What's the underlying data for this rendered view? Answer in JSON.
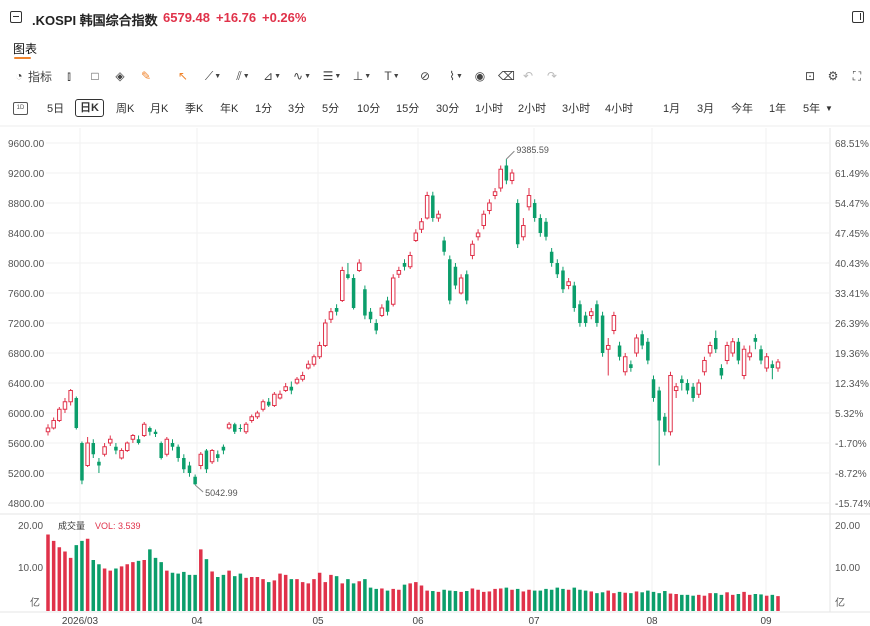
{
  "header": {
    "title": ".KOSPI 韩国综合指数",
    "price": "6579.48",
    "change": "+16.76",
    "change_pct": "+0.26%",
    "up_color": "#e0324a"
  },
  "tab": {
    "label": "图表"
  },
  "toolbar": {
    "indicator_label": "指标",
    "icons": [
      "indicator-icon",
      "candle-style-icon",
      "rectangle-icon",
      "layers-icon",
      "brush-icon",
      "cursor-icon",
      "trend-line-icon",
      "parallel-line-icon",
      "triangle-icon",
      "wave-icon",
      "fib-icon",
      "horizontal-line-icon",
      "text-icon",
      "measure-icon",
      "path-icon",
      "eye-icon",
      "trash-icon",
      "undo-icon",
      "redo-icon",
      "camera-icon",
      "settings-icon",
      "fullscreen-icon"
    ]
  },
  "periods": [
    "5日",
    "日K",
    "周K",
    "月K",
    "季K",
    "年K",
    "1分",
    "3分",
    "5分",
    "10分",
    "15分",
    "30分",
    "1小时",
    "2小时",
    "3小时",
    "4小时",
    "1月",
    "3月",
    "今年",
    "1年",
    "5年"
  ],
  "selected_period": "日K",
  "chart_data": {
    "type": "candlestick",
    "y_left_ticks": [
      "9600.00",
      "9200.00",
      "8800.00",
      "8400.00",
      "8000.00",
      "7600.00",
      "7200.00",
      "6800.00",
      "6400.00",
      "6000.00",
      "5600.00",
      "5200.00",
      "4800.00"
    ],
    "y_right_ticks": [
      "68.51%",
      "61.49%",
      "54.47%",
      "47.45%",
      "40.43%",
      "33.41%",
      "26.39%",
      "19.36%",
      "12.34%",
      "5.32%",
      "-1.70%",
      "-8.72%",
      "-15.74%"
    ],
    "ylim": [
      4800,
      9600
    ],
    "high_label": "9385.59",
    "low_label": "5042.99",
    "x_labels": [
      "2026/03",
      "04",
      "05",
      "06",
      "07",
      "08",
      "09"
    ],
    "volume": {
      "label": "成交量",
      "vol_text": "VOL: 3.539",
      "y_ticks_left": [
        "20.00",
        "10.00",
        "亿"
      ],
      "y_ticks_right": [
        "20.00",
        "10.00",
        "亿"
      ],
      "ylim": [
        0,
        20
      ]
    },
    "up_color": "#e0324a",
    "down_color": "#0b9e6b",
    "candles": [
      [
        5750,
        5800,
        5700,
        5850,
        1
      ],
      [
        5800,
        5900,
        5780,
        5940,
        1
      ],
      [
        5900,
        6050,
        5880,
        6080,
        1
      ],
      [
        6050,
        6150,
        6000,
        6200,
        1
      ],
      [
        6150,
        6300,
        6100,
        6320,
        1
      ],
      [
        6200,
        5800,
        5780,
        6220,
        0
      ],
      [
        5600,
        5100,
        5050,
        5620,
        0
      ],
      [
        5300,
        5600,
        5280,
        5680,
        1
      ],
      [
        5600,
        5450,
        5400,
        5650,
        0
      ],
      [
        5350,
        5300,
        5200,
        5400,
        0
      ],
      [
        5450,
        5550,
        5420,
        5600,
        1
      ],
      [
        5600,
        5650,
        5560,
        5700,
        1
      ],
      [
        5550,
        5500,
        5450,
        5600,
        0
      ],
      [
        5400,
        5500,
        5380,
        5530,
        1
      ],
      [
        5500,
        5600,
        5480,
        5620,
        1
      ],
      [
        5650,
        5700,
        5600,
        5720,
        1
      ],
      [
        5650,
        5600,
        5580,
        5700,
        0
      ],
      [
        5700,
        5850,
        5680,
        5880,
        1
      ],
      [
        5800,
        5750,
        5700,
        5820,
        0
      ],
      [
        5750,
        5720,
        5680,
        5780,
        0
      ],
      [
        5600,
        5400,
        5380,
        5620,
        0
      ],
      [
        5450,
        5650,
        5420,
        5680,
        1
      ],
      [
        5600,
        5550,
        5500,
        5650,
        0
      ],
      [
        5550,
        5400,
        5350,
        5580,
        0
      ],
      [
        5400,
        5250,
        5200,
        5450,
        0
      ],
      [
        5300,
        5200,
        5150,
        5350,
        0
      ],
      [
        5150,
        5050,
        5040,
        5180,
        0
      ],
      [
        5300,
        5450,
        5250,
        5480,
        1
      ],
      [
        5500,
        5250,
        5200,
        5520,
        0
      ],
      [
        5350,
        5500,
        5320,
        5520,
        1
      ],
      [
        5450,
        5400,
        5350,
        5500,
        0
      ],
      [
        5550,
        5500,
        5450,
        5580,
        0
      ],
      [
        5800,
        5850,
        5780,
        5880,
        1
      ],
      [
        5850,
        5750,
        5720,
        5870,
        0
      ],
      [
        5800,
        5800,
        5750,
        5850,
        0
      ],
      [
        5750,
        5850,
        5720,
        5880,
        1
      ],
      [
        5900,
        5950,
        5870,
        5980,
        1
      ],
      [
        5950,
        6000,
        5920,
        6030,
        1
      ],
      [
        6050,
        6150,
        6020,
        6180,
        1
      ],
      [
        6150,
        6100,
        6080,
        6200,
        0
      ],
      [
        6100,
        6250,
        6080,
        6280,
        1
      ],
      [
        6200,
        6250,
        6180,
        6300,
        1
      ],
      [
        6300,
        6350,
        6280,
        6400,
        1
      ],
      [
        6350,
        6300,
        6250,
        6420,
        0
      ],
      [
        6400,
        6450,
        6380,
        6480,
        1
      ],
      [
        6450,
        6500,
        6420,
        6550,
        1
      ],
      [
        6600,
        6650,
        6580,
        6700,
        1
      ],
      [
        6650,
        6750,
        6620,
        6780,
        1
      ],
      [
        6750,
        6900,
        6720,
        6950,
        1
      ],
      [
        6900,
        7200,
        6880,
        7250,
        1
      ],
      [
        7250,
        7350,
        7200,
        7400,
        1
      ],
      [
        7400,
        7350,
        7300,
        7450,
        0
      ],
      [
        7500,
        7900,
        7480,
        7950,
        1
      ],
      [
        7850,
        7800,
        7780,
        8000,
        0
      ],
      [
        7800,
        7400,
        7380,
        7850,
        0
      ],
      [
        7900,
        8000,
        7880,
        8050,
        1
      ],
      [
        7650,
        7300,
        7250,
        7700,
        0
      ],
      [
        7350,
        7250,
        7200,
        7400,
        0
      ],
      [
        7200,
        7100,
        7050,
        7250,
        0
      ],
      [
        7300,
        7400,
        7280,
        7450,
        1
      ],
      [
        7500,
        7350,
        7300,
        7550,
        0
      ],
      [
        7450,
        7800,
        7420,
        7850,
        1
      ],
      [
        7850,
        7900,
        7800,
        7950,
        1
      ],
      [
        8000,
        7950,
        7900,
        8050,
        0
      ],
      [
        7950,
        8100,
        7920,
        8150,
        1
      ],
      [
        8300,
        8400,
        8280,
        8450,
        1
      ],
      [
        8450,
        8550,
        8400,
        8600,
        1
      ],
      [
        8600,
        8900,
        8580,
        8950,
        1
      ],
      [
        8900,
        8600,
        8550,
        8950,
        0
      ],
      [
        8600,
        8650,
        8550,
        8700,
        1
      ],
      [
        8300,
        8150,
        8100,
        8350,
        0
      ],
      [
        8050,
        7500,
        7450,
        8100,
        0
      ],
      [
        7950,
        7700,
        7650,
        8000,
        0
      ],
      [
        7600,
        7800,
        7580,
        7850,
        1
      ],
      [
        7850,
        7500,
        7450,
        7900,
        0
      ],
      [
        8100,
        8250,
        8050,
        8300,
        1
      ],
      [
        8350,
        8400,
        8300,
        8450,
        1
      ],
      [
        8500,
        8650,
        8450,
        8700,
        1
      ],
      [
        8700,
        8800,
        8650,
        8850,
        1
      ],
      [
        8900,
        8950,
        8850,
        9000,
        1
      ],
      [
        9000,
        9250,
        8950,
        9300,
        1
      ],
      [
        9300,
        9100,
        9050,
        9385,
        0
      ],
      [
        9100,
        9200,
        9050,
        9250,
        1
      ],
      [
        8800,
        8250,
        8200,
        8850,
        0
      ],
      [
        8350,
        8500,
        8300,
        8600,
        1
      ],
      [
        8750,
        8900,
        8700,
        9000,
        1
      ],
      [
        8800,
        8600,
        8550,
        8850,
        0
      ],
      [
        8600,
        8400,
        8350,
        8650,
        0
      ],
      [
        8550,
        8350,
        8300,
        8600,
        0
      ],
      [
        8150,
        8000,
        7950,
        8200,
        0
      ],
      [
        8000,
        7850,
        7800,
        8050,
        0
      ],
      [
        7900,
        7650,
        7600,
        7950,
        0
      ],
      [
        7700,
        7750,
        7650,
        7800,
        1
      ],
      [
        7700,
        7400,
        7350,
        7750,
        0
      ],
      [
        7450,
        7200,
        7150,
        7500,
        0
      ],
      [
        7300,
        7200,
        7150,
        7350,
        0
      ],
      [
        7300,
        7350,
        7250,
        7400,
        1
      ],
      [
        7450,
        7200,
        7150,
        7500,
        0
      ],
      [
        7300,
        6800,
        6750,
        7350,
        0
      ],
      [
        6850,
        6900,
        6500,
        7000,
        1
      ],
      [
        7100,
        7300,
        7050,
        7350,
        1
      ],
      [
        6900,
        6750,
        6700,
        6950,
        0
      ],
      [
        6550,
        6750,
        6500,
        6800,
        1
      ],
      [
        6650,
        6600,
        6550,
        6700,
        0
      ],
      [
        6800,
        7000,
        6750,
        7050,
        1
      ],
      [
        7050,
        6900,
        6850,
        7100,
        0
      ],
      [
        6950,
        6700,
        6650,
        7000,
        0
      ],
      [
        6450,
        6200,
        6150,
        6500,
        0
      ],
      [
        6300,
        5900,
        5300,
        6350,
        0
      ],
      [
        5950,
        5750,
        5700,
        6000,
        0
      ],
      [
        5750,
        6500,
        5700,
        6550,
        1
      ],
      [
        6300,
        6350,
        6200,
        6400,
        1
      ],
      [
        6450,
        6400,
        6300,
        6500,
        0
      ],
      [
        6400,
        6300,
        6250,
        6450,
        0
      ],
      [
        6350,
        6200,
        6150,
        6400,
        0
      ],
      [
        6250,
        6400,
        6200,
        6450,
        1
      ],
      [
        6550,
        6700,
        6500,
        6750,
        1
      ],
      [
        6800,
        6900,
        6750,
        6950,
        1
      ],
      [
        7000,
        6850,
        6800,
        7100,
        0
      ],
      [
        6600,
        6500,
        6450,
        6650,
        0
      ],
      [
        6700,
        6900,
        6650,
        6950,
        1
      ],
      [
        6800,
        6950,
        6750,
        7000,
        1
      ],
      [
        6950,
        6700,
        6650,
        7000,
        0
      ],
      [
        6500,
        6850,
        6450,
        6900,
        1
      ],
      [
        6750,
        6800,
        6700,
        6900,
        1
      ],
      [
        6950,
        7000,
        6850,
        7050,
        0
      ],
      [
        6850,
        6700,
        6650,
        6900,
        0
      ],
      [
        6600,
        6750,
        6550,
        6800,
        1
      ],
      [
        6650,
        6600,
        6450,
        6700,
        0
      ],
      [
        6600,
        6680,
        6550,
        6720,
        1
      ]
    ]
  }
}
